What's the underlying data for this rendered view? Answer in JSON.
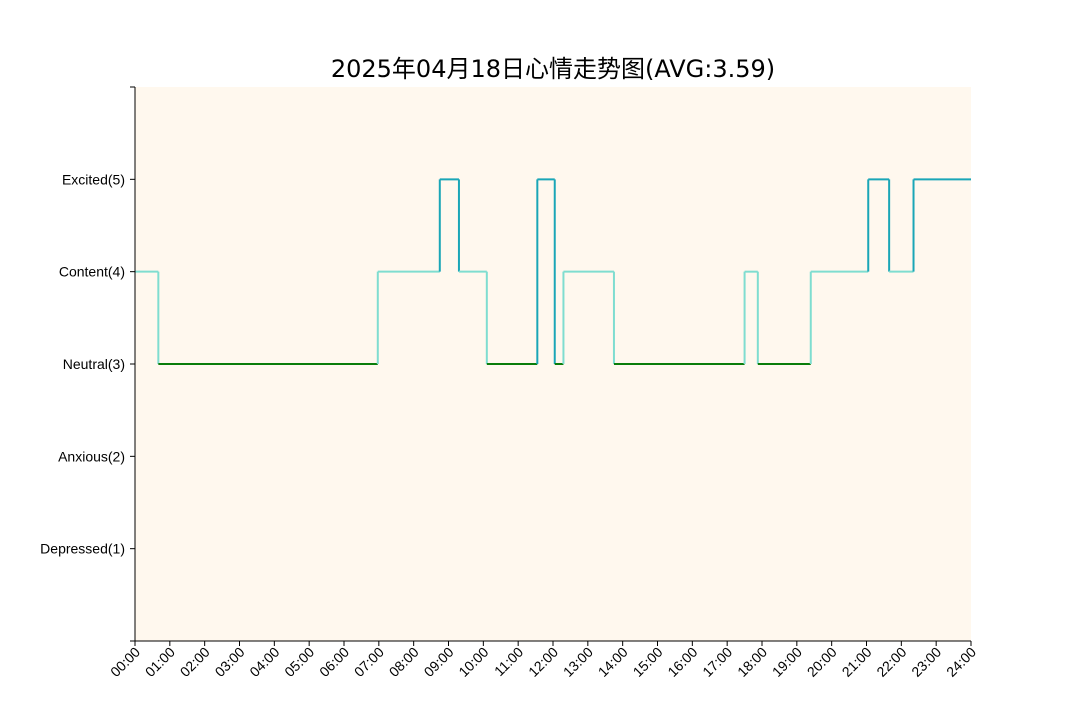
{
  "chart_data": {
    "type": "line",
    "title": "2025年04月18日心情走势图(AVG:3.59)",
    "xlabel": "",
    "ylabel": "",
    "xlim": [
      0,
      24
    ],
    "ylim": [
      0,
      6
    ],
    "grid": false,
    "background_color": "#FFF8EE",
    "colors": {
      "transition_3_4": "#7FDDD0",
      "transition_4_5": "#1AA6B7",
      "transition_3_5": "#1AA6B7",
      "level_3": "#0A7D0A",
      "level_4": "#7FDDD0",
      "level_5": "#1AA6B7"
    },
    "y_ticks": [
      {
        "value": 1,
        "label": "Depressed(1)"
      },
      {
        "value": 2,
        "label": "Anxious(2)"
      },
      {
        "value": 3,
        "label": "Neutral(3)"
      },
      {
        "value": 4,
        "label": "Content(4)"
      },
      {
        "value": 5,
        "label": "Excited(5)"
      }
    ],
    "x_ticks": [
      "00:00",
      "01:00",
      "02:00",
      "03:00",
      "04:00",
      "05:00",
      "06:00",
      "07:00",
      "08:00",
      "09:00",
      "10:00",
      "11:00",
      "12:00",
      "13:00",
      "14:00",
      "15:00",
      "16:00",
      "17:00",
      "18:00",
      "19:00",
      "20:00",
      "21:00",
      "22:00",
      "23:00",
      "24:00"
    ],
    "series": [
      {
        "x": [
          0,
          0.67,
          6.97,
          8.75,
          9.3,
          10.1,
          11.55,
          12.05,
          12.3,
          13.75,
          17.5,
          17.88,
          19.4,
          21.05,
          21.65,
          22.35,
          24
        ],
        "y": [
          4,
          3,
          4,
          5,
          4,
          3,
          5,
          3,
          4,
          3,
          4,
          3,
          4,
          5,
          4,
          5,
          5
        ]
      }
    ]
  }
}
